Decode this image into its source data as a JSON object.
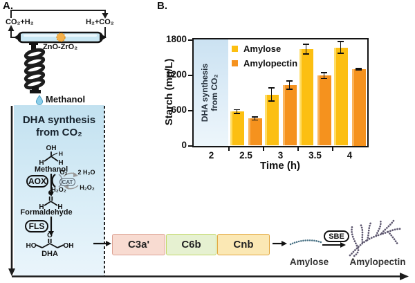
{
  "figure": {
    "panel_a_label": "A.",
    "panel_b_label": "B."
  },
  "reactor": {
    "gas_out": "CO₂+H₂",
    "gas_in": "H₂+CO₂",
    "catalyst_label": "ZnO-ZrO₂",
    "condensate_label": "Methanol"
  },
  "pathway": {
    "title_line1": "DHA synthesis",
    "title_line2": "from CO₂",
    "methanol": {
      "top": "OH",
      "left": "H",
      "right": "H",
      "side": "H",
      "name": "Methanol"
    },
    "enzyme_aox": "AOX",
    "enzyme_cat": "CAT",
    "cat_cycle": {
      "o2": "O₂",
      "water": "2 H₂O",
      "peroxide_left": "H₂O₂",
      "peroxide_right": "H₂O₂"
    },
    "formaldehyde": {
      "top": "O",
      "left": "H",
      "right": "H",
      "name": "Formaldehyde"
    },
    "enzyme_fls": "FLS",
    "dha": {
      "top": "O",
      "left": "HO",
      "right": "OH",
      "name": "DHA"
    }
  },
  "assembly": {
    "genes": [
      {
        "label": "C3a'",
        "bg": "#f8dbd1",
        "border": "#dca193"
      },
      {
        "label": "C6b",
        "bg": "#e6f1d1",
        "border": "#c3d867"
      },
      {
        "label": "Cnb",
        "bg": "#fbe8b4",
        "border": "#e2a63e"
      }
    ],
    "enzyme_sbe": "SBE",
    "amylose_label": "Amylose",
    "amylopectin_label": "Amylopectin"
  },
  "chart_data": {
    "type": "bar",
    "title": "",
    "xlabel": "Time (h)",
    "ylabel": "Starch (mg/L)",
    "categories": [
      "2",
      "2.5",
      "3",
      "3.5",
      "4"
    ],
    "y_ticks": [
      0,
      600,
      1200,
      1800
    ],
    "ylim": [
      0,
      1800
    ],
    "grid": false,
    "legend_position": "top-left-inside",
    "series": [
      {
        "name": "Amylose",
        "color": "#fcbf12",
        "color_light": "#ffdd66",
        "values": [
          null,
          580,
          870,
          1640,
          1670
        ],
        "errors": [
          null,
          40,
          120,
          90,
          110
        ]
      },
      {
        "name": "Amylopectin",
        "color": "#f5921e",
        "color_light": "#fbb45c",
        "values": [
          null,
          460,
          1030,
          1190,
          1300
        ],
        "errors": [
          null,
          35,
          80,
          60,
          20
        ]
      }
    ],
    "annotation_region": {
      "category": "2",
      "label_line1": "DHA synthesis",
      "label_line2": "from CO₂",
      "color": "#d8e9f5"
    }
  },
  "colors": {
    "amylose_bar": "#fcbf12",
    "amylopectin_bar": "#f5921e",
    "pathway_panel_top": "#c2e1f0",
    "pathway_panel_bottom": "#eaf5fb",
    "amylose_chain_dots": "#4a7285",
    "amylopectin_dots": "#5e5870",
    "tube_fill": "#c9e7f3",
    "catalyst_ball": "#f4b04a"
  }
}
